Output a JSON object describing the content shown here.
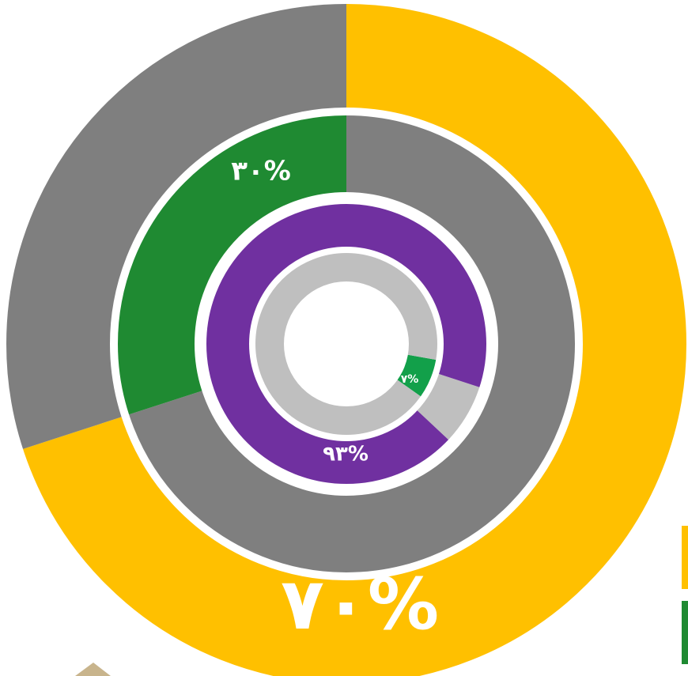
{
  "chart_data": [
    {
      "type": "pie",
      "values": [
        70,
        30
      ],
      "value_labels": [
        "۷۰%",
        null
      ],
      "colors": [
        "#ffc000",
        "#7f7f7f"
      ]
    },
    {
      "type": "pie",
      "values": [
        70,
        30
      ],
      "value_labels": [
        null,
        "۳۰%"
      ],
      "colors": [
        "#7f7f7f",
        "#1f8a32"
      ]
    },
    {
      "type": "pie",
      "values": [
        7,
        93
      ],
      "value_labels": [
        null,
        "۹۳%"
      ],
      "colors": [
        "#bfbfbf",
        "#7030a0"
      ]
    },
    {
      "type": "pie",
      "values": [
        7,
        93
      ],
      "value_labels": [
        "۷%",
        null
      ],
      "colors": [
        "#12a04a",
        "#bfbfbf"
      ]
    }
  ]
}
